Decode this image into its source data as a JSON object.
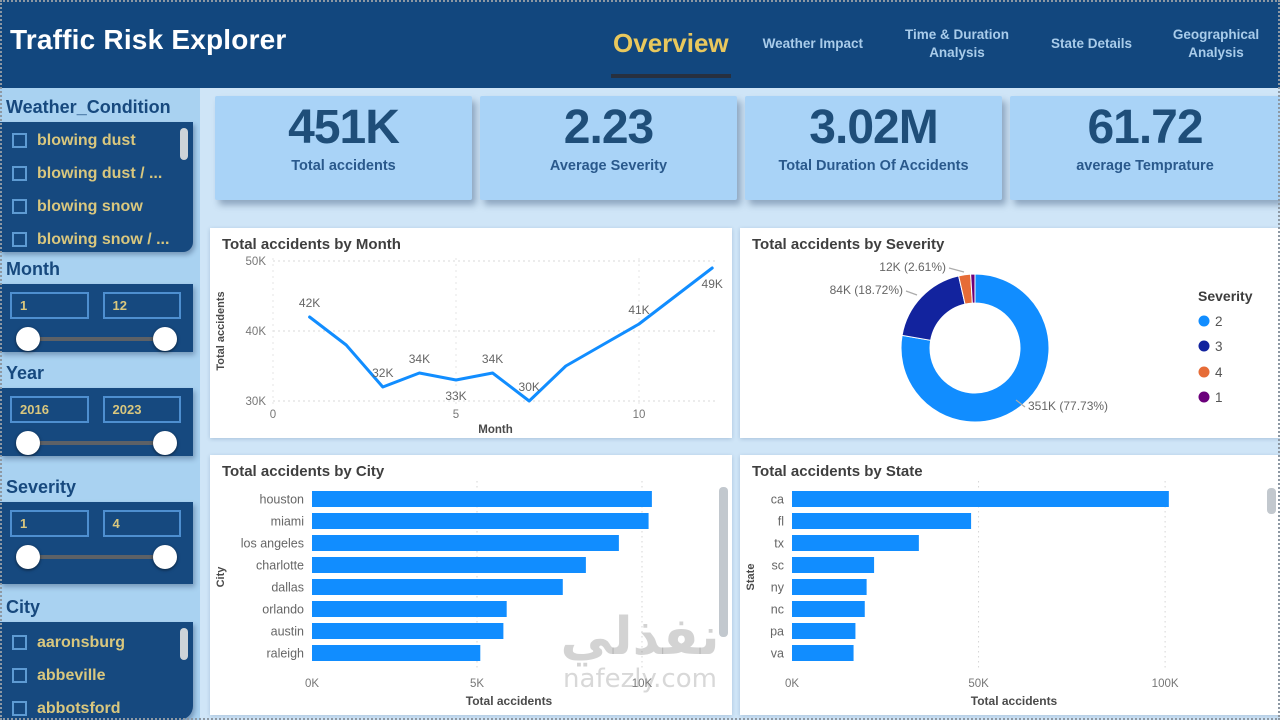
{
  "header": {
    "title": "Traffic Risk Explorer",
    "tabs": [
      {
        "label": "Overview",
        "active": true
      },
      {
        "label": "Weather Impact"
      },
      {
        "label": "Time & Duration Analysis"
      },
      {
        "label": "State Details"
      },
      {
        "label": "Geographical Analysis"
      }
    ]
  },
  "sidebar": {
    "weather": {
      "title": "Weather_Condition",
      "items": [
        "blowing dust",
        "blowing dust / ...",
        "blowing snow",
        "blowing snow / ..."
      ]
    },
    "sliders": [
      {
        "title": "Month",
        "min": "1",
        "max": "12"
      },
      {
        "title": "Year",
        "min": "2016",
        "max": "2023"
      },
      {
        "title": "Severity",
        "min": "1",
        "max": "4"
      }
    ],
    "city": {
      "title": "City",
      "items": [
        "aaronsburg",
        "abbeville",
        "abbotsford"
      ]
    }
  },
  "kpis": [
    {
      "value": "451K",
      "label": "Total accidents"
    },
    {
      "value": "2.23",
      "label": "Average Severity"
    },
    {
      "value": "3.02M",
      "label": "Total Duration Of Accidents"
    },
    {
      "value": "61.72",
      "label": "average Temprature"
    }
  ],
  "chart_data": [
    {
      "type": "line",
      "title": "Total accidents by Month",
      "xlabel": "Month",
      "ylabel": "Total accidents",
      "x": [
        1,
        2,
        3,
        4,
        5,
        6,
        7,
        8,
        9,
        10,
        11,
        12
      ],
      "values_k": [
        42,
        38,
        32,
        34,
        33,
        34,
        30,
        35,
        38,
        41,
        45,
        49
      ],
      "point_labels": [
        {
          "i": 0,
          "text": "42K",
          "pos": "above"
        },
        {
          "i": 2,
          "text": "32K",
          "pos": "above"
        },
        {
          "i": 3,
          "text": "34K",
          "pos": "above"
        },
        {
          "i": 4,
          "text": "33K",
          "pos": "below"
        },
        {
          "i": 5,
          "text": "34K",
          "pos": "above"
        },
        {
          "i": 6,
          "text": "30K",
          "pos": "above"
        },
        {
          "i": 9,
          "text": "41K",
          "pos": "above"
        },
        {
          "i": 11,
          "text": "49K",
          "pos": "below"
        }
      ],
      "yticks": [
        {
          "v": 30,
          "label": "30K"
        },
        {
          "v": 40,
          "label": "40K"
        },
        {
          "v": 50,
          "label": "50K"
        }
      ],
      "xticks": [
        {
          "v": 0,
          "label": "0"
        },
        {
          "v": 5,
          "label": "5"
        },
        {
          "v": 10,
          "label": "10"
        }
      ],
      "ylim": [
        30,
        50
      ]
    },
    {
      "type": "donut",
      "title": "Total accidents by Severity",
      "legend_title": "Severity",
      "legend_position": "right",
      "slices": [
        {
          "label": "2",
          "pct": 77.73,
          "color": "#118DFF",
          "callout": "351K (77.73%)"
        },
        {
          "label": "3",
          "pct": 18.72,
          "color": "#12239E",
          "callout": "84K (18.72%)"
        },
        {
          "label": "4",
          "pct": 2.61,
          "color": "#E66C37",
          "callout": "12K (2.61%)"
        },
        {
          "label": "1",
          "pct": null,
          "color": "#6B007B",
          "callout": null
        }
      ]
    },
    {
      "type": "bar",
      "title": "Total accidents by City",
      "xlabel": "Total accidents",
      "ylabel": "City",
      "categories": [
        "houston",
        "miami",
        "los angeles",
        "charlotte",
        "dallas",
        "orlando",
        "austin",
        "raleigh"
      ],
      "values_k": [
        10.3,
        10.2,
        9.3,
        8.3,
        7.6,
        5.9,
        5.8,
        5.1
      ],
      "xticks": [
        {
          "v": 0,
          "label": "0K"
        },
        {
          "v": 5,
          "label": "5K"
        },
        {
          "v": 10,
          "label": "10K"
        }
      ],
      "xmax_k": 11.94
    },
    {
      "type": "bar",
      "title": "Total accidents by State",
      "xlabel": "Total accidents",
      "ylabel": "State",
      "categories": [
        "ca",
        "fl",
        "tx",
        "sc",
        "ny",
        "nc",
        "pa",
        "va"
      ],
      "values_k": [
        101,
        48,
        34,
        22,
        20,
        19.5,
        17,
        16.5
      ],
      "xticks": [
        {
          "v": 0,
          "label": "0K"
        },
        {
          "v": 50,
          "label": "50K"
        },
        {
          "v": 100,
          "label": "100K"
        }
      ],
      "xmax_k": 119
    }
  ],
  "watermark": {
    "arabic": "نفذلي",
    "latin": "nafezly.com"
  },
  "colors": {
    "accent": "#118DFF",
    "header_bg": "#12477E",
    "sidebar_bg": "#A9D2F1",
    "panel_bg": "#16497F",
    "gold": "#D9C77E",
    "tab_gold": "#E9C85D",
    "kpi_bg": "#A9D3F7",
    "kpi_text": "#1F4E79",
    "navy": "#12239E",
    "orange": "#E66C37",
    "purple": "#6B007B"
  }
}
